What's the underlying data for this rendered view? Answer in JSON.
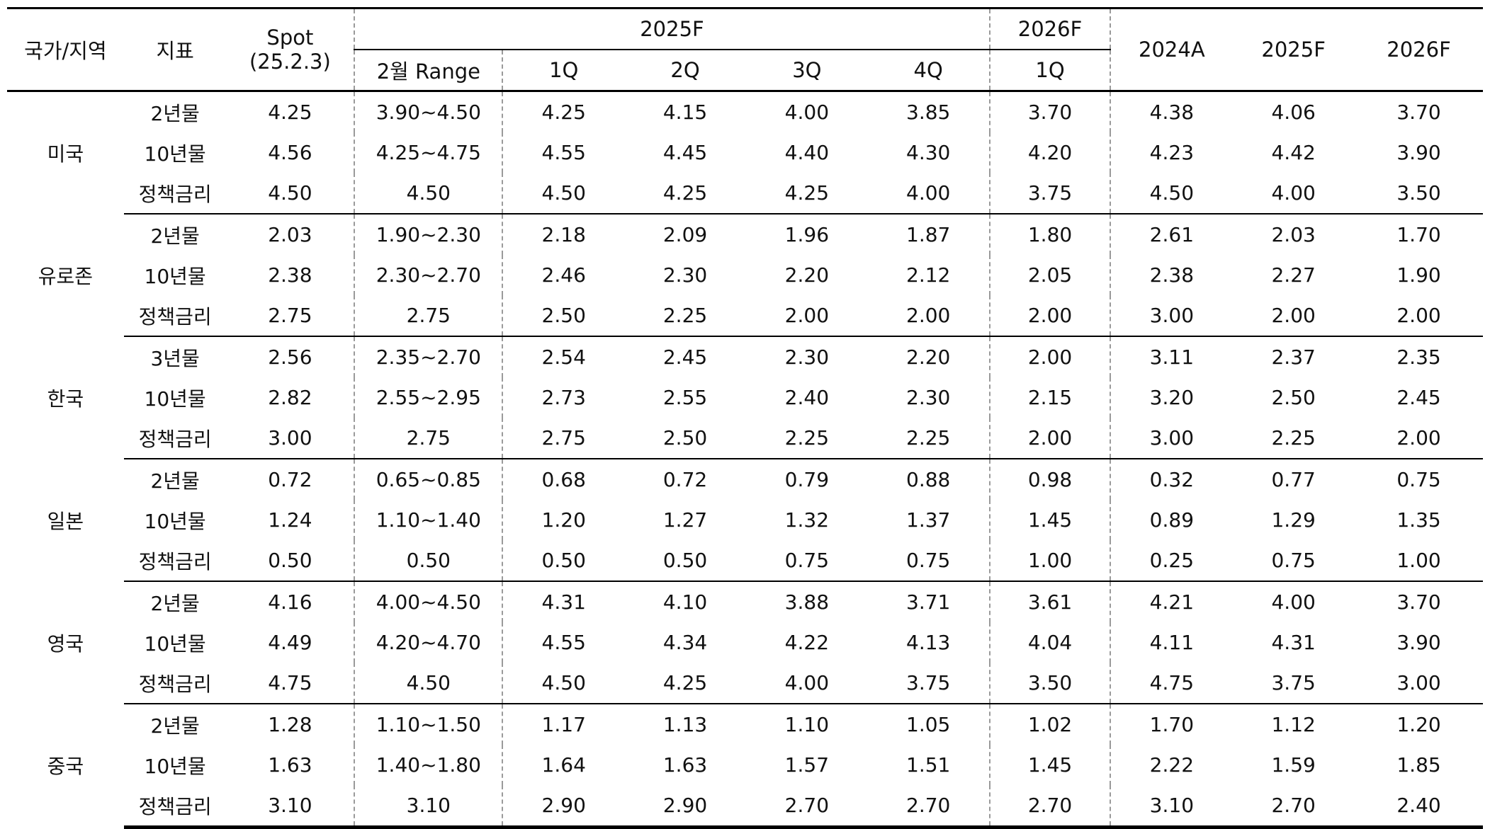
{
  "header": {
    "country": "국가/지역",
    "indicator": "지표",
    "spot_line1": "Spot",
    "spot_line2": "(25.2.3)",
    "range": "2월 Range",
    "group_2025f": "2025F",
    "group_2026f": "2026F",
    "q1": "1Q",
    "q2": "2Q",
    "q3": "3Q",
    "q4": "4Q",
    "q1_2026": "1Q",
    "a2024": "2024A",
    "f2025": "2025F",
    "f2026": "2026F"
  },
  "regions": [
    {
      "name": "미국",
      "rows": [
        {
          "indicator": "2년물",
          "spot": "4.25",
          "range": "3.90~4.50",
          "q1": "4.25",
          "q2": "4.15",
          "q3": "4.00",
          "q4": "3.85",
          "q1_26": "3.70",
          "a24": "4.38",
          "f25": "4.06",
          "f26": "3.70"
        },
        {
          "indicator": "10년물",
          "spot": "4.56",
          "range": "4.25~4.75",
          "q1": "4.55",
          "q2": "4.45",
          "q3": "4.40",
          "q4": "4.30",
          "q1_26": "4.20",
          "a24": "4.23",
          "f25": "4.42",
          "f26": "3.90"
        },
        {
          "indicator": "정책금리",
          "spot": "4.50",
          "range": "4.50",
          "q1": "4.50",
          "q2": "4.25",
          "q3": "4.25",
          "q4": "4.00",
          "q1_26": "3.75",
          "a24": "4.50",
          "f25": "4.00",
          "f26": "3.50"
        }
      ]
    },
    {
      "name": "유로존",
      "rows": [
        {
          "indicator": "2년물",
          "spot": "2.03",
          "range": "1.90~2.30",
          "q1": "2.18",
          "q2": "2.09",
          "q3": "1.96",
          "q4": "1.87",
          "q1_26": "1.80",
          "a24": "2.61",
          "f25": "2.03",
          "f26": "1.70"
        },
        {
          "indicator": "10년물",
          "spot": "2.38",
          "range": "2.30~2.70",
          "q1": "2.46",
          "q2": "2.30",
          "q3": "2.20",
          "q4": "2.12",
          "q1_26": "2.05",
          "a24": "2.38",
          "f25": "2.27",
          "f26": "1.90"
        },
        {
          "indicator": "정책금리",
          "spot": "2.75",
          "range": "2.75",
          "q1": "2.50",
          "q2": "2.25",
          "q3": "2.00",
          "q4": "2.00",
          "q1_26": "2.00",
          "a24": "3.00",
          "f25": "2.00",
          "f26": "2.00"
        }
      ]
    },
    {
      "name": "한국",
      "rows": [
        {
          "indicator": "3년물",
          "spot": "2.56",
          "range": "2.35~2.70",
          "q1": "2.54",
          "q2": "2.45",
          "q3": "2.30",
          "q4": "2.20",
          "q1_26": "2.00",
          "a24": "3.11",
          "f25": "2.37",
          "f26": "2.35"
        },
        {
          "indicator": "10년물",
          "spot": "2.82",
          "range": "2.55~2.95",
          "q1": "2.73",
          "q2": "2.55",
          "q3": "2.40",
          "q4": "2.30",
          "q1_26": "2.15",
          "a24": "3.20",
          "f25": "2.50",
          "f26": "2.45"
        },
        {
          "indicator": "정책금리",
          "spot": "3.00",
          "range": "2.75",
          "q1": "2.75",
          "q2": "2.50",
          "q3": "2.25",
          "q4": "2.25",
          "q1_26": "2.00",
          "a24": "3.00",
          "f25": "2.25",
          "f26": "2.00"
        }
      ]
    },
    {
      "name": "일본",
      "rows": [
        {
          "indicator": "2년물",
          "spot": "0.72",
          "range": "0.65~0.85",
          "q1": "0.68",
          "q2": "0.72",
          "q3": "0.79",
          "q4": "0.88",
          "q1_26": "0.98",
          "a24": "0.32",
          "f25": "0.77",
          "f26": "0.75"
        },
        {
          "indicator": "10년물",
          "spot": "1.24",
          "range": "1.10~1.40",
          "q1": "1.20",
          "q2": "1.27",
          "q3": "1.32",
          "q4": "1.37",
          "q1_26": "1.45",
          "a24": "0.89",
          "f25": "1.29",
          "f26": "1.35"
        },
        {
          "indicator": "정책금리",
          "spot": "0.50",
          "range": "0.50",
          "q1": "0.50",
          "q2": "0.50",
          "q3": "0.75",
          "q4": "0.75",
          "q1_26": "1.00",
          "a24": "0.25",
          "f25": "0.75",
          "f26": "1.00"
        }
      ]
    },
    {
      "name": "영국",
      "rows": [
        {
          "indicator": "2년물",
          "spot": "4.16",
          "range": "4.00~4.50",
          "q1": "4.31",
          "q2": "4.10",
          "q3": "3.88",
          "q4": "3.71",
          "q1_26": "3.61",
          "a24": "4.21",
          "f25": "4.00",
          "f26": "3.70"
        },
        {
          "indicator": "10년물",
          "spot": "4.49",
          "range": "4.20~4.70",
          "q1": "4.55",
          "q2": "4.34",
          "q3": "4.22",
          "q4": "4.13",
          "q1_26": "4.04",
          "a24": "4.11",
          "f25": "4.31",
          "f26": "3.90"
        },
        {
          "indicator": "정책금리",
          "spot": "4.75",
          "range": "4.50",
          "q1": "4.50",
          "q2": "4.25",
          "q3": "4.00",
          "q4": "3.75",
          "q1_26": "3.50",
          "a24": "4.75",
          "f25": "3.75",
          "f26": "3.00"
        }
      ]
    },
    {
      "name": "중국",
      "rows": [
        {
          "indicator": "2년물",
          "spot": "1.28",
          "range": "1.10~1.50",
          "q1": "1.17",
          "q2": "1.13",
          "q3": "1.10",
          "q4": "1.05",
          "q1_26": "1.02",
          "a24": "1.70",
          "f25": "1.12",
          "f26": "1.20"
        },
        {
          "indicator": "10년물",
          "spot": "1.63",
          "range": "1.40~1.80",
          "q1": "1.64",
          "q2": "1.63",
          "q3": "1.57",
          "q4": "1.51",
          "q1_26": "1.45",
          "a24": "2.22",
          "f25": "1.59",
          "f26": "1.85"
        },
        {
          "indicator": "정책금리",
          "spot": "3.10",
          "range": "3.10",
          "q1": "2.90",
          "q2": "2.90",
          "q3": "2.70",
          "q4": "2.70",
          "q1_26": "2.70",
          "a24": "3.10",
          "f25": "2.70",
          "f26": "2.40"
        }
      ]
    }
  ]
}
